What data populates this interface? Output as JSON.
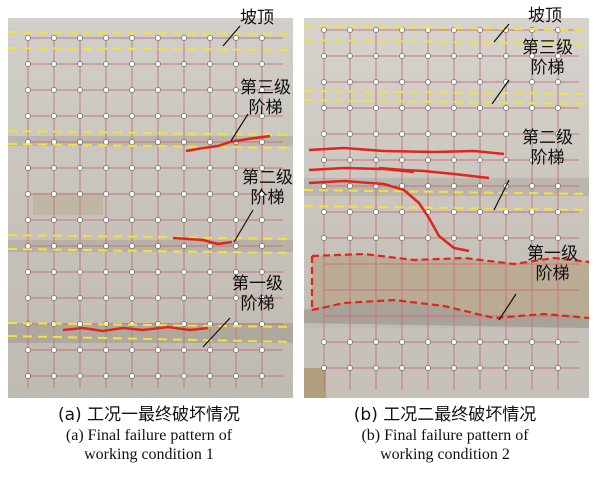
{
  "panel_a": {
    "labels": {
      "slope_top": "坡顶",
      "third_step": [
        "第三级",
        "阶梯"
      ],
      "second_step": [
        "第二级",
        "阶梯"
      ],
      "first_step": [
        "第一级",
        "阶梯"
      ]
    },
    "caption": {
      "zh": "(a) 工况一最终破坏情况",
      "en_line1": "(a) Final failure pattern of",
      "en_line2": "working condition 1"
    }
  },
  "panel_b": {
    "labels": {
      "slope_top": "坡顶",
      "third_step": [
        "第三级",
        "阶梯"
      ],
      "second_step": [
        "第二级",
        "阶梯"
      ],
      "first_step": [
        "第一级",
        "阶梯"
      ]
    },
    "caption": {
      "zh": "(b) 工况二最终破坏情况",
      "en_line1": "(b) Final failure  pattern of",
      "en_line2": "working condition 2"
    }
  },
  "colors": {
    "step_boundary": "#f2e23a",
    "crack": "#e0261c",
    "grid_line": "#c9707a",
    "marker": "#ffffff",
    "soil_a": "#c9c6c0",
    "soil_b": "#cfcbc4"
  }
}
